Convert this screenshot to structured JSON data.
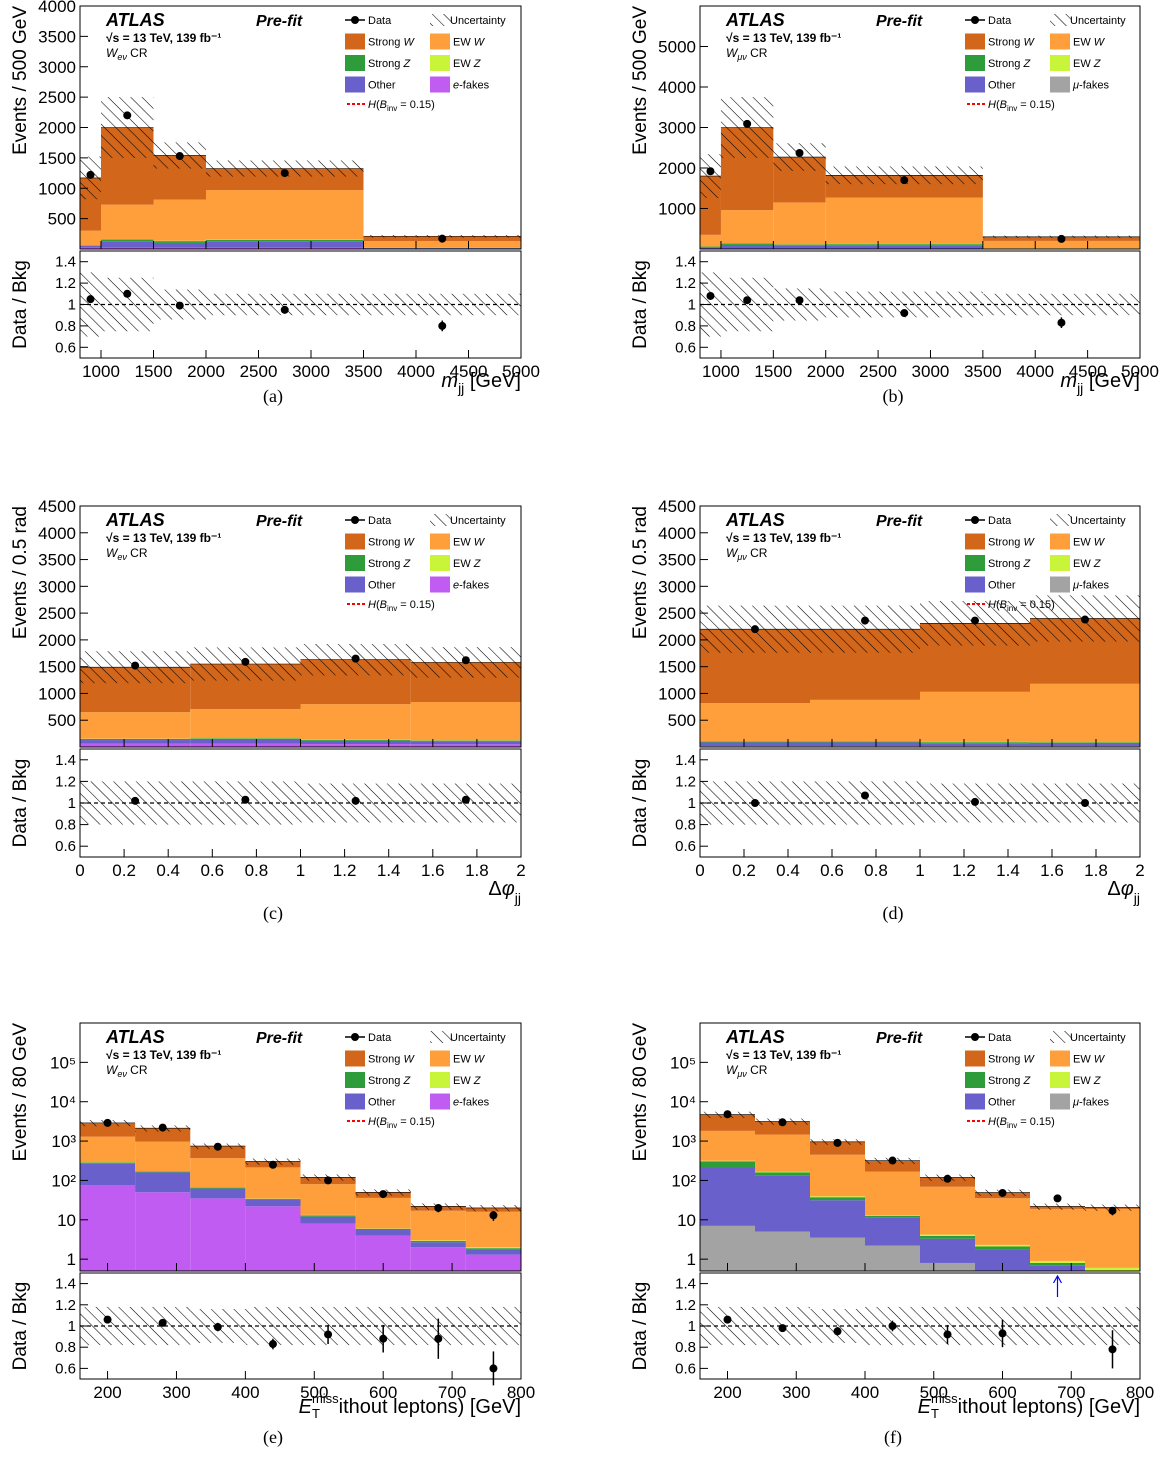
{
  "colors": {
    "strong_w": "#d2661b",
    "ew_w": "#ff9f3c",
    "strong_z": "#2e9c3b",
    "ew_z": "#c8f53a",
    "other": "#6a60cc",
    "e_fakes": "#c15cf2",
    "mu_fakes": "#a3a3a3",
    "signal": "#ff0000",
    "data": "#000000",
    "arrow": "#0000ff"
  },
  "legend": {
    "data": "Data",
    "uncertainty": "Uncertainty",
    "strong_w": "Strong W",
    "ew_w": "EW W",
    "strong_z": "Strong Z",
    "ew_z": "EW Z",
    "other": "Other",
    "e_fakes": "e-fakes",
    "mu_fakes": "μ-fakes",
    "signal": "H(B_inv = 0.15)"
  },
  "labels": {
    "atlas": "ATLAS",
    "prefit": "Pre-fit",
    "energy": "√s = 13 TeV, 139 fb⁻¹",
    "ratio_ylabel": "Data / Bkg"
  },
  "chart_data": [
    {
      "panel": "(a)",
      "type": "bar",
      "region": "W_eν CR",
      "fake_key": "e_fakes",
      "ylabel": "Events / 500 GeV",
      "xlabel": "m_jj [GeV]",
      "log": false,
      "xlim": [
        800,
        5000
      ],
      "ylim": [
        0,
        4000
      ],
      "x_ticks": [
        1000,
        1500,
        2000,
        2500,
        3000,
        3500,
        4000,
        4500,
        5000
      ],
      "y_ticks": [
        500,
        1000,
        1500,
        2000,
        2500,
        3000,
        3500,
        4000
      ],
      "bins": [
        [
          800,
          1000
        ],
        [
          1000,
          1500
        ],
        [
          1500,
          2000
        ],
        [
          2000,
          3500
        ],
        [
          3500,
          5000
        ]
      ],
      "fakes": [
        20,
        20,
        20,
        20,
        5
      ],
      "other": [
        30,
        100,
        80,
        100,
        10
      ],
      "strong_z": [
        10,
        40,
        30,
        30,
        5
      ],
      "ew_z": [
        2,
        5,
        5,
        5,
        2
      ],
      "ew_w": [
        240,
        565,
        680,
        815,
        110
      ],
      "strong_w": [
        868,
        1270,
        725,
        355,
        78
      ],
      "unc": [
        0.3,
        0.25,
        0.14,
        0.1,
        0.1
      ],
      "data_x": [
        900,
        1250,
        1750,
        2750,
        4250
      ],
      "data_y": [
        1220,
        2200,
        1530,
        1250,
        170
      ],
      "data_err": [
        35,
        47,
        39,
        35,
        13
      ],
      "ratio_ylim": [
        0.5,
        1.5
      ],
      "ratio_ticks": [
        0.6,
        0.8,
        1,
        1.2,
        1.4
      ],
      "ratio": [
        1.05,
        1.1,
        0.99,
        0.95,
        0.8
      ],
      "ratio_err": [
        0.03,
        0.02,
        0.02,
        0.02,
        0.05
      ]
    },
    {
      "panel": "(b)",
      "type": "bar",
      "region": "W_μν CR",
      "fake_key": "mu_fakes",
      "ylabel": "Events / 500 GeV",
      "xlabel": "m_jj [GeV]",
      "log": false,
      "xlim": [
        800,
        5000
      ],
      "ylim": [
        0,
        6000
      ],
      "x_ticks": [
        1000,
        1500,
        2000,
        2500,
        3000,
        3500,
        4000,
        4500,
        5000
      ],
      "y_ticks": [
        1000,
        2000,
        3000,
        4000,
        5000
      ],
      "bins": [
        [
          800,
          1000
        ],
        [
          1000,
          1500
        ],
        [
          1500,
          2000
        ],
        [
          2000,
          3500
        ],
        [
          3500,
          5000
        ]
      ],
      "fakes": [
        5,
        10,
        10,
        10,
        2
      ],
      "other": [
        40,
        90,
        70,
        80,
        8
      ],
      "strong_z": [
        15,
        40,
        30,
        30,
        5
      ],
      "ew_z": [
        2,
        5,
        5,
        5,
        2
      ],
      "ew_w": [
        288,
        815,
        1035,
        1145,
        183
      ],
      "strong_w": [
        1450,
        2040,
        1120,
        550,
        100
      ],
      "unc": [
        0.3,
        0.25,
        0.15,
        0.12,
        0.1
      ],
      "data_x": [
        900,
        1250,
        1750,
        2750,
        4250
      ],
      "data_y": [
        1920,
        3090,
        2370,
        1700,
        250
      ],
      "data_err": [
        44,
        56,
        49,
        41,
        16
      ],
      "ratio_ylim": [
        0.5,
        1.5
      ],
      "ratio_ticks": [
        0.6,
        0.8,
        1,
        1.2,
        1.4
      ],
      "ratio": [
        1.08,
        1.04,
        1.04,
        0.92,
        0.83
      ],
      "ratio_err": [
        0.03,
        0.02,
        0.02,
        0.02,
        0.05
      ]
    },
    {
      "panel": "(c)",
      "type": "bar",
      "region": "W_eν CR",
      "fake_key": "e_fakes",
      "ylabel": "Events / 0.5 rad",
      "xlabel": "Δφ_jj",
      "log": false,
      "xlim": [
        0,
        2
      ],
      "ylim": [
        0,
        4500
      ],
      "x_ticks": [
        0,
        0.2,
        0.4,
        0.6,
        0.8,
        1,
        1.2,
        1.4,
        1.6,
        1.8,
        2
      ],
      "y_ticks": [
        500,
        1000,
        1500,
        2000,
        2500,
        3000,
        3500,
        4000,
        4500
      ],
      "bins": [
        [
          0,
          0.5
        ],
        [
          0.5,
          1
        ],
        [
          1,
          1.5
        ],
        [
          1.5,
          2
        ]
      ],
      "fakes": [
        60,
        60,
        55,
        50
      ],
      "other": [
        70,
        80,
        60,
        50
      ],
      "strong_z": [
        20,
        20,
        20,
        20
      ],
      "ew_z": [
        5,
        5,
        5,
        5
      ],
      "ew_w": [
        495,
        545,
        660,
        715
      ],
      "strong_w": [
        840,
        840,
        830,
        740
      ],
      "unc": [
        0.2,
        0.2,
        0.18,
        0.18
      ],
      "data_x": [
        0.25,
        0.75,
        1.25,
        1.75
      ],
      "data_y": [
        1520,
        1590,
        1650,
        1620
      ],
      "data_err": [
        39,
        40,
        41,
        40
      ],
      "ratio_ylim": [
        0.5,
        1.5
      ],
      "ratio_ticks": [
        0.6,
        0.8,
        1,
        1.2,
        1.4
      ],
      "ratio": [
        1.02,
        1.03,
        1.02,
        1.03
      ],
      "ratio_err": [
        0.02,
        0.02,
        0.02,
        0.02
      ]
    },
    {
      "panel": "(d)",
      "type": "bar",
      "region": "W_μν CR",
      "fake_key": "mu_fakes",
      "ylabel": "Events / 0.5 rad",
      "xlabel": "Δφ_jj",
      "log": false,
      "xlim": [
        0,
        2
      ],
      "ylim": [
        0,
        4500
      ],
      "x_ticks": [
        0,
        0.2,
        0.4,
        0.6,
        0.8,
        1,
        1.2,
        1.4,
        1.6,
        1.8,
        2
      ],
      "y_ticks": [
        500,
        1000,
        1500,
        2000,
        2500,
        3000,
        3500,
        4000,
        4500
      ],
      "bins": [
        [
          0,
          0.5
        ],
        [
          0.5,
          1
        ],
        [
          1,
          1.5
        ],
        [
          1.5,
          2
        ]
      ],
      "fakes": [
        15,
        15,
        15,
        15
      ],
      "other": [
        70,
        70,
        55,
        50
      ],
      "strong_z": [
        20,
        20,
        20,
        20
      ],
      "ew_z": [
        5,
        5,
        5,
        5
      ],
      "ew_w": [
        710,
        770,
        935,
        1090
      ],
      "strong_w": [
        1380,
        1320,
        1280,
        1220
      ],
      "unc": [
        0.2,
        0.2,
        0.18,
        0.18
      ],
      "data_x": [
        0.25,
        0.75,
        1.25,
        1.75
      ],
      "data_y": [
        2200,
        2360,
        2360,
        2380
      ],
      "data_err": [
        47,
        49,
        49,
        49
      ],
      "ratio_ylim": [
        0.5,
        1.5
      ],
      "ratio_ticks": [
        0.6,
        0.8,
        1,
        1.2,
        1.4
      ],
      "ratio": [
        1.0,
        1.07,
        1.01,
        1.0
      ],
      "ratio_err": [
        0.02,
        0.02,
        0.02,
        0.02
      ]
    },
    {
      "panel": "(e)",
      "type": "bar",
      "region": "W_eν CR",
      "fake_key": "e_fakes",
      "ylabel": "Events / 80 GeV",
      "xlabel": "E_T^miss (without leptons) [GeV]",
      "log": true,
      "xlim": [
        160,
        800
      ],
      "ylim": [
        0.5,
        1000000
      ],
      "x_ticks": [
        200,
        300,
        400,
        500,
        600,
        700,
        800
      ],
      "y_ticks": [
        1,
        10,
        100,
        1000,
        10000,
        100000
      ],
      "y_tick_labels": [
        "1",
        "10",
        "10²",
        "10³",
        "10⁴",
        "10⁵"
      ],
      "bins": [
        [
          160,
          240
        ],
        [
          240,
          320
        ],
        [
          320,
          400
        ],
        [
          400,
          480
        ],
        [
          480,
          560
        ],
        [
          560,
          640
        ],
        [
          640,
          720
        ],
        [
          720,
          800
        ]
      ],
      "fakes": [
        75,
        50,
        35,
        22,
        8,
        4,
        2,
        1.3
      ],
      "other": [
        190,
        110,
        27,
        10,
        4,
        1.5,
        0.7,
        0.5
      ],
      "strong_z": [
        20,
        10,
        4,
        2,
        1,
        0.4,
        0.2,
        0.1
      ],
      "ew_z": [
        5,
        3,
        1,
        0.5,
        0.3,
        0.1,
        0.1,
        0.1
      ],
      "ew_w": [
        1010,
        800,
        300,
        180,
        67,
        30,
        14,
        14
      ],
      "strong_w": [
        1600,
        1150,
        380,
        90,
        40,
        14,
        5,
        4
      ],
      "unc": [
        0.18,
        0.18,
        0.16,
        0.18,
        0.18,
        0.18,
        0.18,
        0.18
      ],
      "data_x": [
        200,
        280,
        360,
        440,
        520,
        600,
        680,
        760
      ],
      "data_y": [
        2900,
        2200,
        720,
        250,
        100,
        45,
        20,
        13
      ],
      "data_err": [
        54,
        47,
        27,
        16,
        10,
        7,
        4.5,
        3.6
      ],
      "ratio_ylim": [
        0.5,
        1.5
      ],
      "ratio_ticks": [
        0.6,
        0.8,
        1,
        1.2,
        1.4
      ],
      "ratio": [
        1.06,
        1.03,
        0.99,
        0.83,
        0.92,
        0.88,
        0.88,
        0.6
      ],
      "ratio_err": [
        0.02,
        0.02,
        0.04,
        0.05,
        0.09,
        0.13,
        0.19,
        0.16
      ]
    },
    {
      "panel": "(f)",
      "type": "bar",
      "region": "W_μν CR",
      "fake_key": "mu_fakes",
      "ylabel": "Events / 80 GeV",
      "xlabel": "E_T^miss (without leptons) [GeV]",
      "log": true,
      "xlim": [
        160,
        800
      ],
      "ylim": [
        0.5,
        1000000
      ],
      "x_ticks": [
        200,
        300,
        400,
        500,
        600,
        700,
        800
      ],
      "y_ticks": [
        1,
        10,
        100,
        1000,
        10000,
        100000
      ],
      "y_tick_labels": [
        "1",
        "10",
        "10²",
        "10³",
        "10⁴",
        "10⁵"
      ],
      "bins": [
        [
          160,
          240
        ],
        [
          240,
          320
        ],
        [
          320,
          400
        ],
        [
          400,
          480
        ],
        [
          480,
          560
        ],
        [
          560,
          640
        ],
        [
          640,
          720
        ],
        [
          720,
          800
        ]
      ],
      "fakes": [
        7,
        5,
        3.5,
        2.2,
        0.8,
        0.4,
        0.2,
        0.1
      ],
      "other": [
        200,
        130,
        28,
        9,
        2.5,
        1.4,
        0.5,
        0.3
      ],
      "strong_z": [
        100,
        25,
        6,
        1.5,
        0.6,
        0.3,
        0.1,
        0.1
      ],
      "ew_z": [
        10,
        5,
        2,
        0.5,
        0.3,
        0.2,
        0.1,
        0.1
      ],
      "ew_w": [
        1500,
        1300,
        410,
        155,
        65,
        33,
        18,
        18
      ],
      "strong_w": [
        2900,
        1700,
        510,
        150,
        50,
        14,
        3,
        2
      ],
      "unc": [
        0.18,
        0.18,
        0.16,
        0.18,
        0.18,
        0.18,
        0.18,
        0.18
      ],
      "data_x": [
        200,
        280,
        360,
        440,
        520,
        600,
        680,
        760
      ],
      "data_y": [
        4800,
        3000,
        900,
        320,
        110,
        48,
        35,
        17
      ],
      "data_err": [
        69,
        55,
        30,
        18,
        10,
        7,
        6,
        4
      ],
      "ratio_ylim": [
        0.5,
        1.5
      ],
      "ratio_ticks": [
        0.6,
        0.8,
        1,
        1.2,
        1.4
      ],
      "ratio": [
        1.06,
        0.98,
        0.95,
        1.0,
        0.92,
        0.93,
        2.0,
        0.78
      ],
      "ratio_err": [
        0.02,
        0.02,
        0.04,
        0.05,
        0.09,
        0.13,
        0.2,
        0.18
      ],
      "ratio_offscale_x": 680
    }
  ]
}
